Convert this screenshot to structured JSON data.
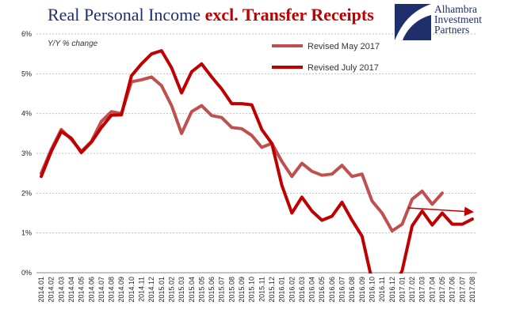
{
  "title": {
    "main": "Real Personal Income",
    "accent": "excl. Transfer Receipts"
  },
  "logo": {
    "line1": "Alhambra",
    "line2": "Investment",
    "line3": "Partners",
    "icon": "alhambra-logo-mark"
  },
  "colors": {
    "may": "#c0504d",
    "july": "#c00000",
    "grid": "#bfbfbf",
    "title": "#1f2f6b",
    "arrow": "#c00000"
  },
  "chart_data": {
    "type": "line",
    "title": "Real Personal Income excl. Transfer Receipts",
    "ylabel": "Y/Y % change",
    "ylim": [
      0,
      6
    ],
    "yticks": [
      "0%",
      "1%",
      "2%",
      "3%",
      "4%",
      "5%",
      "6%"
    ],
    "grid": true,
    "legend_position": "top-right",
    "categories": [
      "2014.01",
      "2014.02",
      "2014.03",
      "2014.04",
      "2014.05",
      "2014.06",
      "2014.07",
      "2014.08",
      "2014.09",
      "2014.10",
      "2014.11",
      "2014.12",
      "2015.01",
      "2015.02",
      "2015.03",
      "2015.04",
      "2015.05",
      "2015.06",
      "2015.07",
      "2015.08",
      "2015.09",
      "2015.10",
      "2015.11",
      "2015.12",
      "2016.01",
      "2016.02",
      "2016.03",
      "2016.04",
      "2016.05",
      "2016.06",
      "2016.07",
      "2016.08",
      "2016.09",
      "2016.10",
      "2016.11",
      "2016.12",
      "2017.01",
      "2017.02",
      "2017.03",
      "2017.04",
      "2017.05",
      "2017.06",
      "2017.07",
      "2017.08"
    ],
    "series": [
      {
        "name": "Revised May 2017",
        "values": [
          2.5,
          3.1,
          3.6,
          3.35,
          3.05,
          3.3,
          3.8,
          4.05,
          4.0,
          4.8,
          4.85,
          4.92,
          4.7,
          4.2,
          3.5,
          4.05,
          4.2,
          3.95,
          3.9,
          3.65,
          3.62,
          3.45,
          3.15,
          3.25,
          2.8,
          2.42,
          2.75,
          2.55,
          2.45,
          2.48,
          2.7,
          2.42,
          2.48,
          1.8,
          1.5,
          1.05,
          1.22,
          1.85,
          2.05,
          1.72,
          2.0,
          null,
          null,
          null
        ]
      },
      {
        "name": "Revised July 2017",
        "values": [
          2.42,
          3.05,
          3.55,
          3.38,
          3.02,
          3.28,
          3.65,
          3.96,
          3.97,
          4.95,
          5.25,
          5.5,
          5.58,
          5.15,
          4.52,
          5.05,
          5.25,
          4.92,
          4.62,
          4.25,
          4.25,
          4.22,
          3.6,
          3.25,
          2.2,
          1.5,
          1.9,
          1.55,
          1.32,
          1.42,
          1.77,
          1.32,
          0.92,
          -0.2,
          -0.7,
          -0.45,
          0.05,
          1.18,
          1.55,
          1.2,
          1.5,
          1.22,
          1.22,
          1.35
        ]
      }
    ]
  }
}
